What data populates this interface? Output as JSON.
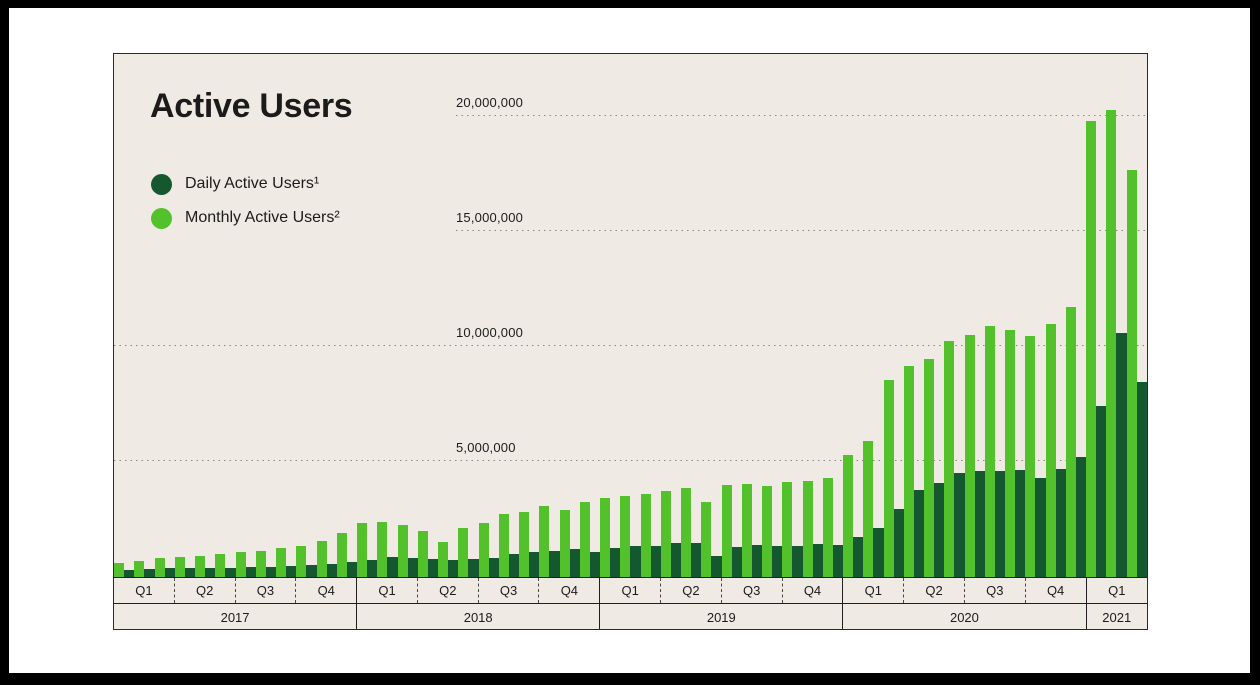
{
  "window": {
    "frame_color": "#000000",
    "slide_background": "#ffffff"
  },
  "chart": {
    "panel_background": "#efebe4",
    "border_color": "#2b2b28",
    "grid_color": "#8d8980",
    "text_color": "#1b1b1b",
    "mau_color": "#53c12b",
    "dau_color": "#15572f"
  },
  "chart_data": {
    "type": "bar",
    "title": "Active Users",
    "unit": "users (values in millions)",
    "grid": "dotted horizontal gridlines",
    "legend_position": "top-left",
    "y_axis": {
      "tick_values_millions": [
        5,
        10,
        15,
        20
      ],
      "tick_labels": [
        "5,000,000",
        "10,000,000",
        "15,000,000",
        "20,000,000"
      ],
      "ylim_millions": [
        0,
        22
      ]
    },
    "x_axis": {
      "years": [
        {
          "label": "2017",
          "quarters": [
            "Q1",
            "Q2",
            "Q3",
            "Q4"
          ],
          "months": 12
        },
        {
          "label": "2018",
          "quarters": [
            "Q1",
            "Q2",
            "Q3",
            "Q4"
          ],
          "months": 12
        },
        {
          "label": "2019",
          "quarters": [
            "Q1",
            "Q2",
            "Q3",
            "Q4"
          ],
          "months": 12
        },
        {
          "label": "2020",
          "quarters": [
            "Q1",
            "Q2",
            "Q3",
            "Q4"
          ],
          "months": 12
        },
        {
          "label": "2021",
          "quarters": [
            "Q1"
          ],
          "months": 3
        }
      ]
    },
    "series": [
      {
        "name": "Monthly Active Users²",
        "color": "#53c12b",
        "values_millions": [
          0.6,
          0.7,
          0.81,
          0.89,
          0.93,
          0.99,
          1.08,
          1.14,
          1.25,
          1.35,
          1.55,
          1.9,
          2.37,
          2.41,
          2.24,
          2.02,
          1.53,
          2.12,
          2.37,
          2.76,
          2.83,
          3.08,
          2.91,
          3.27,
          3.42,
          3.53,
          3.6,
          3.74,
          3.85,
          3.27,
          4.0,
          4.05,
          3.95,
          4.14,
          4.17,
          4.29,
          5.31,
          5.91,
          8.58,
          9.19,
          9.46,
          10.25,
          10.54,
          10.91,
          10.72,
          10.47,
          11.0,
          11.75,
          19.83,
          20.3,
          17.7
        ]
      },
      {
        "name": "Daily Active Users¹",
        "color": "#15572f",
        "values_millions": [
          0.3,
          0.36,
          0.38,
          0.38,
          0.41,
          0.41,
          0.44,
          0.45,
          0.48,
          0.52,
          0.58,
          0.64,
          0.75,
          0.87,
          0.82,
          0.78,
          0.75,
          0.8,
          0.81,
          1.01,
          1.08,
          1.13,
          1.23,
          1.08,
          1.25,
          1.35,
          1.35,
          1.47,
          1.47,
          0.92,
          1.29,
          1.39,
          1.35,
          1.34,
          1.43,
          1.38,
          1.76,
          2.13,
          2.97,
          3.79,
          4.08,
          4.54,
          4.59,
          4.62,
          4.66,
          4.3,
          4.7,
          5.2,
          7.45,
          10.6,
          8.47
        ]
      }
    ]
  }
}
